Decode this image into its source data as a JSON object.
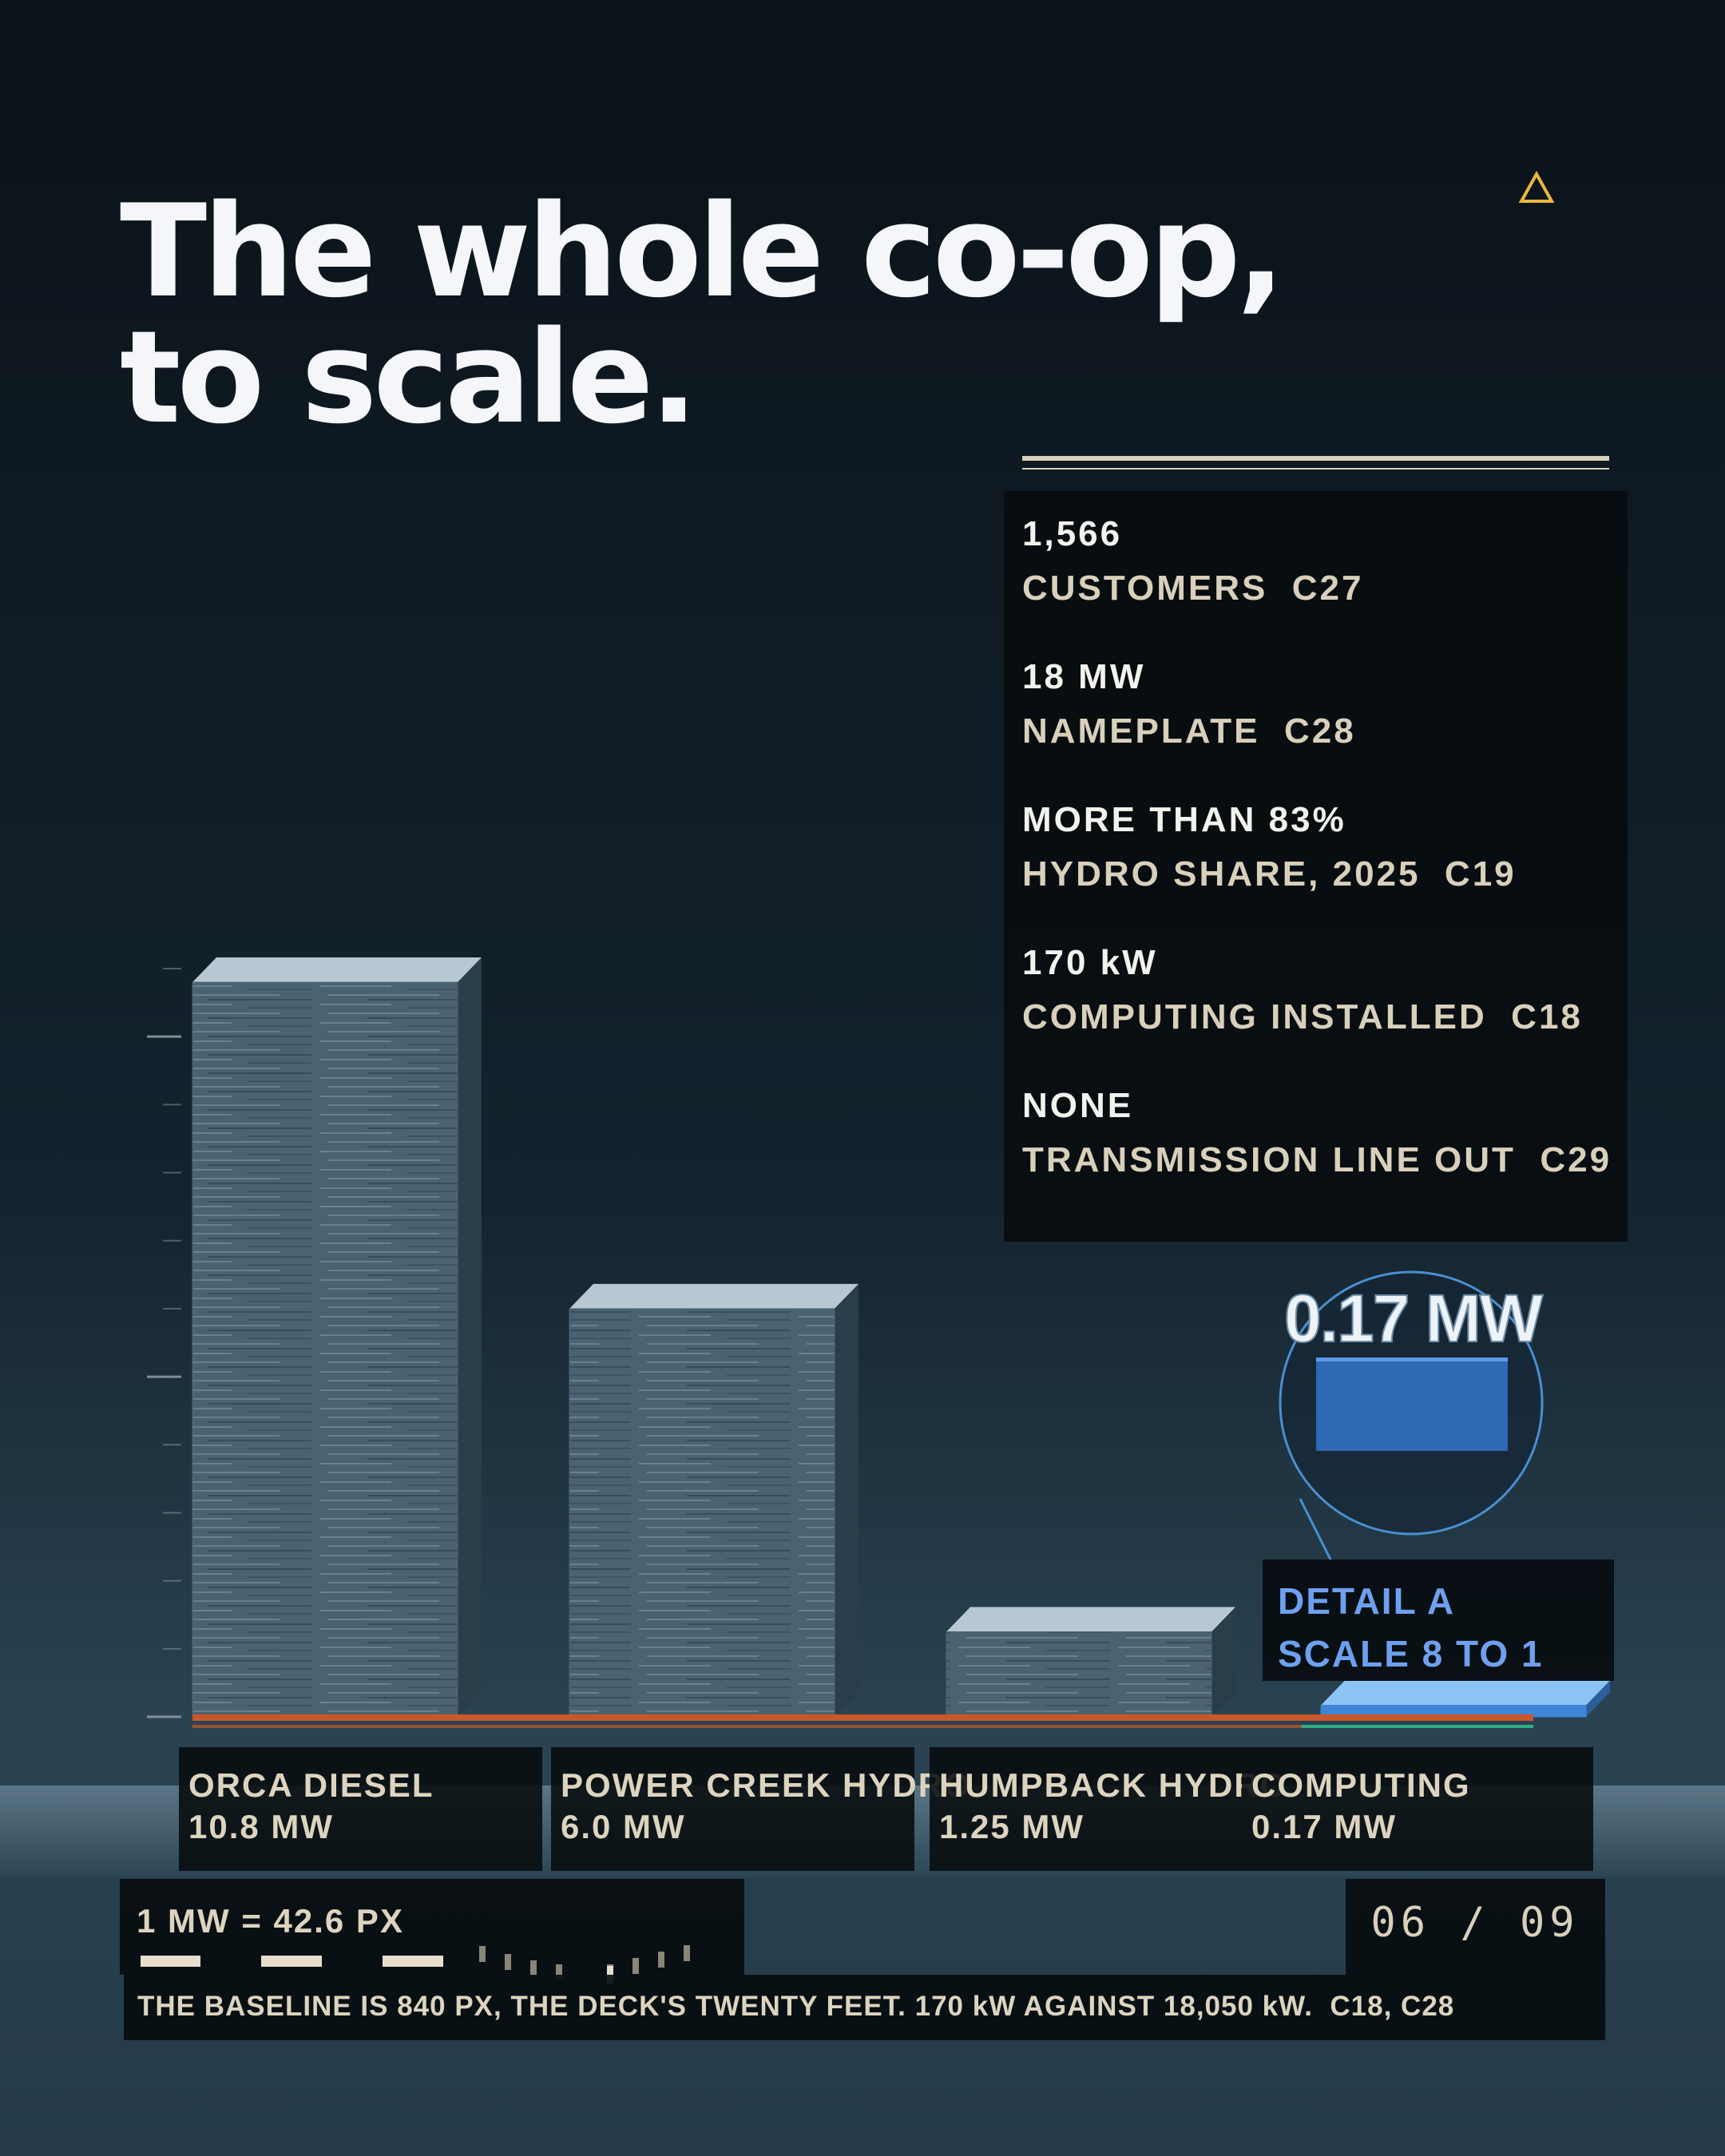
{
  "header": {
    "title_lines": [
      "The whole co-op,",
      "to scale."
    ]
  },
  "stats": [
    {
      "value": "1,566",
      "label": "CUSTOMERS  C27"
    },
    {
      "value": "18 MW",
      "label": "NAMEPLATE  C28"
    },
    {
      "value": "MORE THAN 83%",
      "label": "HYDRO SHARE, 2025  C19"
    },
    {
      "value": "170 kW",
      "label": "COMPUTING INSTALLED  C18"
    },
    {
      "value": "NONE",
      "label": "TRANSMISSION LINE OUT  C29"
    }
  ],
  "chart_data": {
    "type": "bar",
    "categories": [
      "ORCA DIESEL",
      "POWER CREEK HYDRO",
      "HUMPBACK HYDRO",
      "COMPUTING"
    ],
    "values": [
      10.8,
      6.0,
      1.25,
      0.17
    ],
    "value_labels": [
      "10.8 MW",
      "6.0 MW",
      "1.25 MW",
      "0.17 MW"
    ],
    "colors": [
      "#4d6575",
      "#4d6575",
      "#4d6575",
      "#3f86d8"
    ],
    "ylim": [
      0,
      11
    ],
    "yticks": [
      0,
      1,
      2,
      3,
      4,
      5,
      6,
      7,
      8,
      9,
      10,
      11
    ],
    "detail": {
      "name": "DETAIL A",
      "scale": "SCALE 8 TO 1"
    }
  },
  "scale_note": "1 MW = 42.6 PX",
  "footnote": "THE BASELINE IS 840 PX, THE DECK'S TWENTY FEET. 170 kW AGAINST 18,050 kW.  C18, C28",
  "page_number": "06 / 09"
}
